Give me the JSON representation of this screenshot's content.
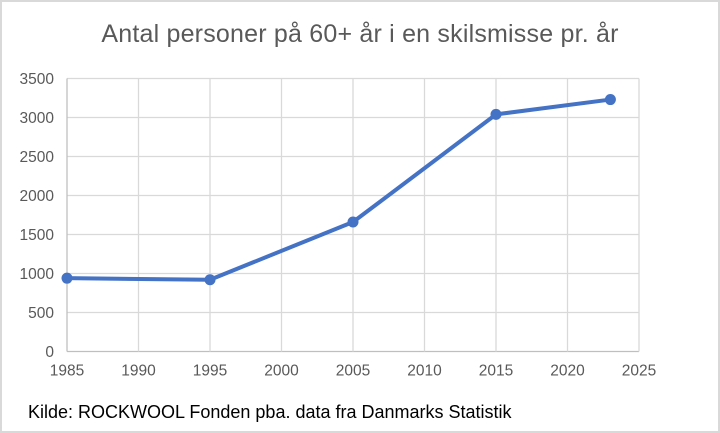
{
  "frame": {
    "background": "#ffffff",
    "border_color": "#d9d9d9"
  },
  "chart_data": {
    "type": "line",
    "title": "Antal personer på 60+ år i en skilsmisse pr. år",
    "xlabel": "",
    "ylabel": "",
    "xlim": [
      1985,
      2025
    ],
    "ylim": [
      0,
      3500
    ],
    "xticks": [
      1985,
      1990,
      1995,
      2000,
      2005,
      2010,
      2015,
      2020,
      2025
    ],
    "yticks": [
      0,
      500,
      1000,
      1500,
      2000,
      2500,
      3000,
      3500
    ],
    "grid": true,
    "legend_position": "none",
    "series": [
      {
        "color": "#4472C4",
        "marker": "circle",
        "points": [
          {
            "x": 1985,
            "y": 940
          },
          {
            "x": 1995,
            "y": 920
          },
          {
            "x": 2005,
            "y": 1660
          },
          {
            "x": 2015,
            "y": 3040
          },
          {
            "x": 2023,
            "y": 3230
          }
        ]
      }
    ]
  },
  "colors": {
    "grid": "#d9d9d9",
    "axis": "#bfbfbf",
    "tick_label": "#595959",
    "title": "#595959",
    "note": "#000000"
  },
  "source_note": "Kilde: ROCKWOOL Fonden pba. data fra Danmarks Statistik"
}
